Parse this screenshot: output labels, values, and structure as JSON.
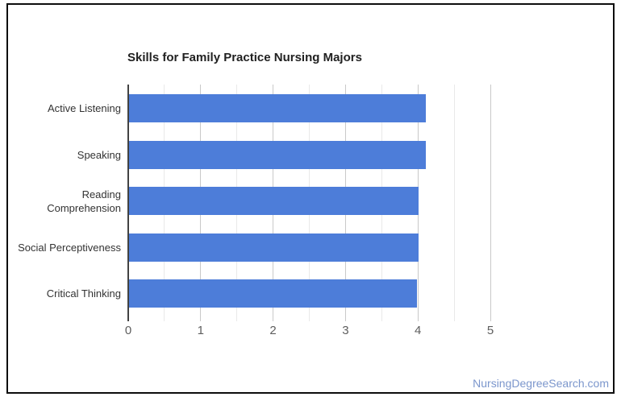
{
  "chart_data": {
    "type": "bar",
    "orientation": "horizontal",
    "title": "Skills for Family Practice Nursing Majors",
    "categories": [
      "Active Listening",
      "Speaking",
      "Reading Comprehension",
      "Social Perceptiveness",
      "Critical Thinking"
    ],
    "values": [
      4.1,
      4.1,
      4.0,
      4.0,
      3.97
    ],
    "xlabel": "",
    "ylabel": "",
    "xlim": [
      0,
      5
    ],
    "x_ticks": [
      "0",
      "1",
      "2",
      "3",
      "4",
      "5"
    ],
    "gridlines": {
      "major_every": 1,
      "minor_every": 0.5,
      "major_color": "#c9c9c9",
      "minor_color": "#e9e9e9"
    },
    "bar_color": "#4d7dd9",
    "axis_line_color": "#424242",
    "legend": "none"
  },
  "colors": {
    "background": "#ffffff",
    "card_border": "#0d0d0d",
    "title_text": "#212121",
    "category_text": "#333333",
    "tick_text": "#5e5e5e"
  },
  "footer": {
    "attribution_link": "NursingDegreeSearch.com",
    "link_color": "#7b96cc"
  }
}
